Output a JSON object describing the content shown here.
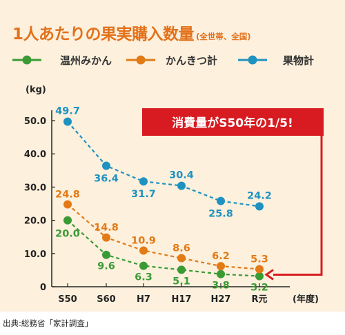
{
  "header": {
    "title": "1人あたりの果実購入数量",
    "subtitle": "(全世帯、全国)"
  },
  "source": "出典:総務省「家計調査」",
  "callout": {
    "text": "消費量がS50年の1/5!"
  },
  "colors": {
    "background": "#fdf0dd",
    "title": "#e3711b",
    "callout_bg": "#d81b21",
    "series": [
      "#3a9b35",
      "#e27a15",
      "#1f92c0"
    ]
  },
  "chart_data": {
    "type": "line",
    "title": "1人あたりの果実購入数量",
    "x": [
      "S50",
      "S60",
      "H7",
      "H17",
      "H27",
      "R元"
    ],
    "xlabel": "(年度)",
    "ylabel": "(kg)",
    "ylim": [
      0,
      50
    ],
    "yticks": [
      "0",
      "10.0",
      "20.0",
      "30.0",
      "40.0",
      "50.0"
    ],
    "grid": false,
    "legend": "top",
    "series": [
      {
        "name": "温州みかん",
        "values": [
          20.0,
          9.6,
          6.3,
          5.1,
          3.8,
          3.2
        ],
        "labels": [
          "20.0",
          "9.6",
          "6.3",
          "5.1",
          "3.8",
          "3.2"
        ]
      },
      {
        "name": "かんきつ計",
        "values": [
          24.8,
          14.8,
          10.9,
          8.6,
          6.2,
          5.3
        ],
        "labels": [
          "24.8",
          "14.8",
          "10.9",
          "8.6",
          "6.2",
          "5.3"
        ]
      },
      {
        "name": "果物計",
        "values": [
          49.7,
          36.4,
          31.7,
          30.4,
          25.8,
          24.2
        ],
        "labels": [
          "49.7",
          "36.4",
          "31.7",
          "30.4",
          "25.8",
          "24.2"
        ]
      }
    ]
  }
}
